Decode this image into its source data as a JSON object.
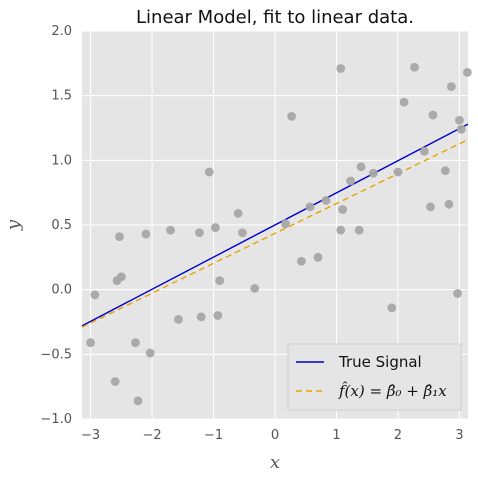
{
  "chart_data": {
    "type": "scatter",
    "title": "Linear Model, fit to linear data.",
    "xlabel": "x",
    "ylabel": "y",
    "xlim": [
      -3.14,
      3.14
    ],
    "ylim": [
      -1.0,
      2.0
    ],
    "grid": true,
    "legend_position": "bottom-right",
    "x_ticks": [
      {
        "value": -3,
        "label": "−3"
      },
      {
        "value": -2,
        "label": "−2"
      },
      {
        "value": -1,
        "label": "−1"
      },
      {
        "value": 0,
        "label": "0"
      },
      {
        "value": 1,
        "label": "1"
      },
      {
        "value": 2,
        "label": "2"
      },
      {
        "value": 3,
        "label": "3"
      }
    ],
    "y_ticks": [
      {
        "value": -1.0,
        "label": "−1.0"
      },
      {
        "value": -0.5,
        "label": "−0.5"
      },
      {
        "value": 0.0,
        "label": "0.0"
      },
      {
        "value": 0.5,
        "label": "0.5"
      },
      {
        "value": 1.0,
        "label": "1.0"
      },
      {
        "value": 1.5,
        "label": "1.5"
      },
      {
        "value": 2.0,
        "label": "2.0"
      }
    ],
    "scatter_points": [
      {
        "x": -3.0,
        "y": -0.41
      },
      {
        "x": -2.93,
        "y": -0.04
      },
      {
        "x": -2.6,
        "y": -0.71
      },
      {
        "x": -2.57,
        "y": 0.07
      },
      {
        "x": -2.53,
        "y": 0.41
      },
      {
        "x": -2.5,
        "y": 0.1
      },
      {
        "x": -2.27,
        "y": -0.41
      },
      {
        "x": -2.23,
        "y": -0.86
      },
      {
        "x": -2.1,
        "y": 0.43
      },
      {
        "x": -2.03,
        "y": -0.49
      },
      {
        "x": -1.7,
        "y": 0.46
      },
      {
        "x": -1.57,
        "y": -0.23
      },
      {
        "x": -1.23,
        "y": 0.44
      },
      {
        "x": -1.2,
        "y": -0.21
      },
      {
        "x": -1.07,
        "y": 0.91
      },
      {
        "x": -0.97,
        "y": 0.48
      },
      {
        "x": -0.9,
        "y": 0.07
      },
      {
        "x": -0.93,
        "y": -0.2
      },
      {
        "x": -0.6,
        "y": 0.59
      },
      {
        "x": -0.53,
        "y": 0.44
      },
      {
        "x": -0.33,
        "y": 0.01
      },
      {
        "x": 0.17,
        "y": 0.51
      },
      {
        "x": 0.27,
        "y": 1.34
      },
      {
        "x": 0.43,
        "y": 0.22
      },
      {
        "x": 0.57,
        "y": 0.64
      },
      {
        "x": 0.7,
        "y": 0.25
      },
      {
        "x": 0.83,
        "y": 0.69
      },
      {
        "x": 1.07,
        "y": 1.71
      },
      {
        "x": 1.07,
        "y": 0.46
      },
      {
        "x": 1.1,
        "y": 0.62
      },
      {
        "x": 1.23,
        "y": 0.84
      },
      {
        "x": 1.37,
        "y": 0.46
      },
      {
        "x": 1.4,
        "y": 0.95
      },
      {
        "x": 1.6,
        "y": 0.9
      },
      {
        "x": 1.9,
        "y": -0.14
      },
      {
        "x": 2.0,
        "y": 0.91
      },
      {
        "x": 2.1,
        "y": 1.45
      },
      {
        "x": 2.27,
        "y": 1.72
      },
      {
        "x": 2.43,
        "y": 1.07
      },
      {
        "x": 2.53,
        "y": 0.64
      },
      {
        "x": 2.57,
        "y": 1.35
      },
      {
        "x": 2.77,
        "y": 0.92
      },
      {
        "x": 2.83,
        "y": 0.66
      },
      {
        "x": 2.87,
        "y": 1.57
      },
      {
        "x": 2.97,
        "y": -0.03
      },
      {
        "x": 3.0,
        "y": 1.31
      },
      {
        "x": 3.03,
        "y": 1.24
      },
      {
        "x": 3.13,
        "y": 1.68
      }
    ],
    "series": [
      {
        "name": "True Signal",
        "kind": "line",
        "style": "solid",
        "color": "#0000cc",
        "x": [
          -3.14,
          3.14
        ],
        "y": [
          -0.28,
          1.28
        ]
      },
      {
        "name": "f̂(x) = β̂₀ + β̂₁x",
        "kind": "line",
        "style": "dashed",
        "color": "#e6a400",
        "x": [
          -3.14,
          3.14
        ],
        "y": [
          -0.29,
          1.16
        ]
      }
    ],
    "colors": {
      "background": "#e5e5e5",
      "grid": "#ffffff",
      "points": "#a6a6a6"
    }
  }
}
